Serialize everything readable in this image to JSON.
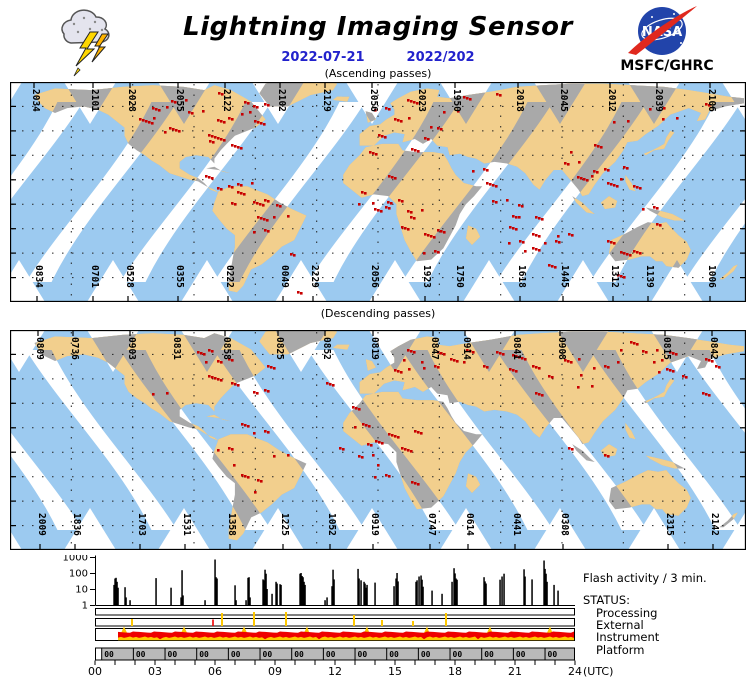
{
  "header": {
    "title": "Lightning Imaging Sensor",
    "date": "2022-07-21",
    "year_doy": "2022/202",
    "org": "MSFC/GHRC"
  },
  "colors": {
    "swath_blue": "#9CCAF0",
    "land_in_swath": "#F2CF8D",
    "land_outside_swath": "#A9A9A9",
    "flash_red": "#C80000",
    "date_blue": "#2222CC",
    "status_yellow": "#FFC800",
    "status_red": "#EE0000",
    "platform_gray": "#B9B9B9",
    "nasa_blue": "#2244AA",
    "nasa_swoosh_red": "#E0281E",
    "bolt_yellow": "#FFD700"
  },
  "maps": {
    "ascending": {
      "caption": "(Ascending passes)",
      "top_times": [
        "2034",
        "2101",
        "2028",
        "2055",
        "2122",
        "2102",
        "2129",
        "2056",
        "2023",
        "1950",
        "2018",
        "2045",
        "2012",
        "2039",
        "2106"
      ],
      "top_x": [
        24,
        83,
        120,
        168,
        215,
        270,
        315,
        362,
        410,
        445,
        508,
        552,
        600,
        647,
        700
      ],
      "bottom_times": [
        "0834",
        "0701",
        "0528",
        "0355",
        "0222",
        "0049",
        "2229",
        "2056",
        "1923",
        "1750",
        "1618",
        "1445",
        "1312",
        "1139",
        "1006"
      ],
      "bottom_x": [
        27,
        83,
        118,
        168,
        218,
        273,
        303,
        363,
        415,
        448,
        510,
        553,
        603,
        638,
        700
      ],
      "flash_clusters": [
        [
          135,
          40,
          6
        ],
        [
          150,
          28,
          4
        ],
        [
          160,
          45,
          5
        ],
        [
          185,
          30,
          3
        ],
        [
          205,
          55,
          8
        ],
        [
          215,
          40,
          5
        ],
        [
          225,
          60,
          4
        ],
        [
          168,
          18,
          3
        ],
        [
          230,
          25,
          3
        ],
        [
          245,
          35,
          5
        ],
        [
          250,
          20,
          4
        ],
        [
          210,
          8,
          2
        ],
        [
          195,
          95,
          3
        ],
        [
          215,
          100,
          4
        ],
        [
          225,
          115,
          5
        ],
        [
          235,
          105,
          3
        ],
        [
          250,
          120,
          6
        ],
        [
          255,
          135,
          4
        ],
        [
          270,
          128,
          4
        ],
        [
          250,
          148,
          3
        ],
        [
          280,
          173,
          2
        ],
        [
          292,
          205,
          2
        ],
        [
          355,
          115,
          4
        ],
        [
          370,
          130,
          5
        ],
        [
          385,
          120,
          4
        ],
        [
          395,
          140,
          5
        ],
        [
          405,
          125,
          3
        ],
        [
          415,
          150,
          4
        ],
        [
          380,
          95,
          3
        ],
        [
          420,
          165,
          3
        ],
        [
          430,
          148,
          3
        ],
        [
          362,
          70,
          3
        ],
        [
          375,
          55,
          3
        ],
        [
          390,
          40,
          4
        ],
        [
          400,
          62,
          3
        ],
        [
          415,
          50,
          3
        ],
        [
          430,
          45,
          2
        ],
        [
          370,
          22,
          3
        ],
        [
          398,
          18,
          4
        ],
        [
          440,
          30,
          2
        ],
        [
          460,
          10,
          3
        ],
        [
          485,
          15,
          2
        ],
        [
          470,
          85,
          3
        ],
        [
          480,
          105,
          4
        ],
        [
          490,
          120,
          3
        ],
        [
          500,
          140,
          4
        ],
        [
          510,
          128,
          4
        ],
        [
          520,
          150,
          3
        ],
        [
          530,
          135,
          3
        ],
        [
          505,
          160,
          3
        ],
        [
          520,
          170,
          4
        ],
        [
          540,
          160,
          3
        ],
        [
          545,
          185,
          3
        ],
        [
          555,
          150,
          3
        ],
        [
          560,
          75,
          4
        ],
        [
          575,
          95,
          5
        ],
        [
          590,
          85,
          4
        ],
        [
          600,
          105,
          4
        ],
        [
          615,
          90,
          3
        ],
        [
          630,
          100,
          3
        ],
        [
          585,
          60,
          3
        ],
        [
          610,
          35,
          2
        ],
        [
          645,
          22,
          2
        ],
        [
          600,
          160,
          3
        ],
        [
          615,
          172,
          4
        ],
        [
          630,
          165,
          3
        ],
        [
          605,
          190,
          3
        ],
        [
          640,
          130,
          3
        ],
        [
          650,
          145,
          2
        ],
        [
          700,
          20,
          2
        ],
        [
          660,
          40,
          2
        ]
      ]
    },
    "descending": {
      "caption": "(Descending passes)",
      "top_times": [
        "0809",
        "0736",
        "0903",
        "0831",
        "0858",
        "0825",
        "0852",
        "0819",
        "0847",
        "0914",
        "0841",
        "0908",
        "0815",
        "0842"
      ],
      "top_x": [
        28,
        63,
        120,
        165,
        215,
        268,
        315,
        363,
        423,
        455,
        505,
        550,
        655,
        702
      ],
      "bottom_times": [
        "2009",
        "1836",
        "1703",
        "1531",
        "1358",
        "1225",
        "1052",
        "0919",
        "0747",
        "0614",
        "0441",
        "0308",
        "2315",
        "2142"
      ],
      "bottom_x": [
        30,
        65,
        130,
        175,
        220,
        273,
        320,
        363,
        420,
        458,
        505,
        553,
        658,
        703
      ],
      "flash_clusters": [
        [
          195,
          25,
          6
        ],
        [
          205,
          45,
          5
        ],
        [
          215,
          30,
          4
        ],
        [
          225,
          55,
          3
        ],
        [
          250,
          65,
          4
        ],
        [
          260,
          40,
          3
        ],
        [
          150,
          60,
          2
        ],
        [
          230,
          95,
          3
        ],
        [
          250,
          105,
          3
        ],
        [
          215,
          120,
          3
        ],
        [
          230,
          140,
          4
        ],
        [
          245,
          155,
          3
        ],
        [
          270,
          130,
          2
        ],
        [
          315,
          55,
          3
        ],
        [
          390,
          35,
          5
        ],
        [
          405,
          25,
          4
        ],
        [
          420,
          40,
          3
        ],
        [
          430,
          20,
          3
        ],
        [
          445,
          30,
          3
        ],
        [
          460,
          25,
          4
        ],
        [
          470,
          40,
          2
        ],
        [
          485,
          20,
          3
        ],
        [
          500,
          35,
          3
        ],
        [
          510,
          28,
          5
        ],
        [
          520,
          40,
          3
        ],
        [
          330,
          120,
          2
        ],
        [
          345,
          80,
          3
        ],
        [
          350,
          95,
          4
        ],
        [
          365,
          110,
          5
        ],
        [
          380,
          100,
          4
        ],
        [
          395,
          120,
          4
        ],
        [
          410,
          105,
          3
        ],
        [
          355,
          130,
          3
        ],
        [
          370,
          140,
          4
        ],
        [
          400,
          150,
          3
        ],
        [
          530,
          60,
          3
        ],
        [
          545,
          45,
          2
        ],
        [
          555,
          120,
          2
        ],
        [
          560,
          30,
          4
        ],
        [
          575,
          50,
          3
        ],
        [
          590,
          40,
          3
        ],
        [
          590,
          130,
          2
        ],
        [
          605,
          25,
          2
        ],
        [
          620,
          15,
          3
        ],
        [
          640,
          25,
          4
        ],
        [
          655,
          35,
          5
        ],
        [
          665,
          20,
          3
        ],
        [
          680,
          45,
          2
        ],
        [
          700,
          30,
          3
        ],
        [
          690,
          60,
          3
        ],
        [
          705,
          40,
          2
        ]
      ]
    }
  },
  "chart_data": {
    "type": "bar",
    "title": "Flash activity / 3 min.",
    "x_axis": {
      "label": "(UTC)",
      "ticks": [
        "00",
        "03",
        "06",
        "09",
        "12",
        "15",
        "18",
        "21",
        "24"
      ],
      "range_hours": [
        0,
        24
      ]
    },
    "y_axis": {
      "scale": "log",
      "ticks": [
        "1",
        "10",
        "100",
        "1000"
      ],
      "range": [
        1,
        1000
      ]
    },
    "flash_spikes": [
      [
        0.95,
        18
      ],
      [
        1.0,
        45
      ],
      [
        1.05,
        50
      ],
      [
        1.1,
        28
      ],
      [
        1.15,
        12
      ],
      [
        1.5,
        13
      ],
      [
        1.55,
        3
      ],
      [
        1.75,
        2
      ],
      [
        3.05,
        48
      ],
      [
        3.8,
        12
      ],
      [
        4.3,
        3
      ],
      [
        4.35,
        150
      ],
      [
        4.4,
        4
      ],
      [
        5.5,
        2
      ],
      [
        6.0,
        700
      ],
      [
        6.05,
        55
      ],
      [
        6.1,
        45
      ],
      [
        7.0,
        17
      ],
      [
        7.05,
        2
      ],
      [
        7.55,
        2
      ],
      [
        7.65,
        50
      ],
      [
        7.7,
        55
      ],
      [
        7.75,
        3
      ],
      [
        8.4,
        40
      ],
      [
        8.45,
        35
      ],
      [
        8.5,
        160
      ],
      [
        8.55,
        90
      ],
      [
        8.6,
        10
      ],
      [
        8.85,
        5
      ],
      [
        9.05,
        28
      ],
      [
        9.1,
        22
      ],
      [
        9.25,
        20
      ],
      [
        9.3,
        18
      ],
      [
        10.25,
        90
      ],
      [
        10.3,
        100
      ],
      [
        10.35,
        65
      ],
      [
        10.4,
        55
      ],
      [
        10.45,
        28
      ],
      [
        10.5,
        18
      ],
      [
        11.5,
        2
      ],
      [
        11.6,
        3
      ],
      [
        11.85,
        15
      ],
      [
        11.9,
        160
      ],
      [
        11.95,
        40
      ],
      [
        13.15,
        180
      ],
      [
        13.2,
        45
      ],
      [
        13.3,
        35
      ],
      [
        13.45,
        28
      ],
      [
        13.5,
        22
      ],
      [
        13.55,
        12
      ],
      [
        13.6,
        18
      ],
      [
        14.0,
        25
      ],
      [
        14.95,
        15
      ],
      [
        15.05,
        45
      ],
      [
        15.1,
        100
      ],
      [
        15.15,
        30
      ],
      [
        16.05,
        28
      ],
      [
        16.1,
        35
      ],
      [
        16.2,
        60
      ],
      [
        16.3,
        70
      ],
      [
        16.35,
        38
      ],
      [
        16.4,
        14
      ],
      [
        16.85,
        8
      ],
      [
        17.35,
        5
      ],
      [
        17.85,
        28
      ],
      [
        17.95,
        200
      ],
      [
        18.0,
        95
      ],
      [
        18.05,
        45
      ],
      [
        18.1,
        38
      ],
      [
        19.45,
        55
      ],
      [
        19.5,
        30
      ],
      [
        19.55,
        22
      ],
      [
        20.25,
        38
      ],
      [
        20.35,
        60
      ],
      [
        20.45,
        90
      ],
      [
        21.45,
        170
      ],
      [
        21.5,
        60
      ],
      [
        21.85,
        40
      ],
      [
        22.45,
        600
      ],
      [
        22.5,
        180
      ],
      [
        22.55,
        90
      ],
      [
        22.6,
        28
      ],
      [
        22.95,
        18
      ],
      [
        23.15,
        8
      ]
    ],
    "status": {
      "heading": "STATUS:",
      "rows": [
        "Processing",
        "External",
        "Instrument",
        "Platform"
      ],
      "external_spikes": [
        [
          1.85,
          7
        ],
        [
          6.35,
          13
        ],
        [
          7.95,
          14
        ],
        [
          9.55,
          14
        ],
        [
          12.95,
          11
        ],
        [
          14.35,
          6
        ],
        [
          15.9,
          5
        ],
        [
          17.55,
          13
        ]
      ],
      "external_red_tick_hour": 5.9,
      "instrument_band_hours": [
        1.15,
        24
      ],
      "platform_code": "00",
      "platform_segments": 15,
      "platform_period_min": 95
    }
  }
}
